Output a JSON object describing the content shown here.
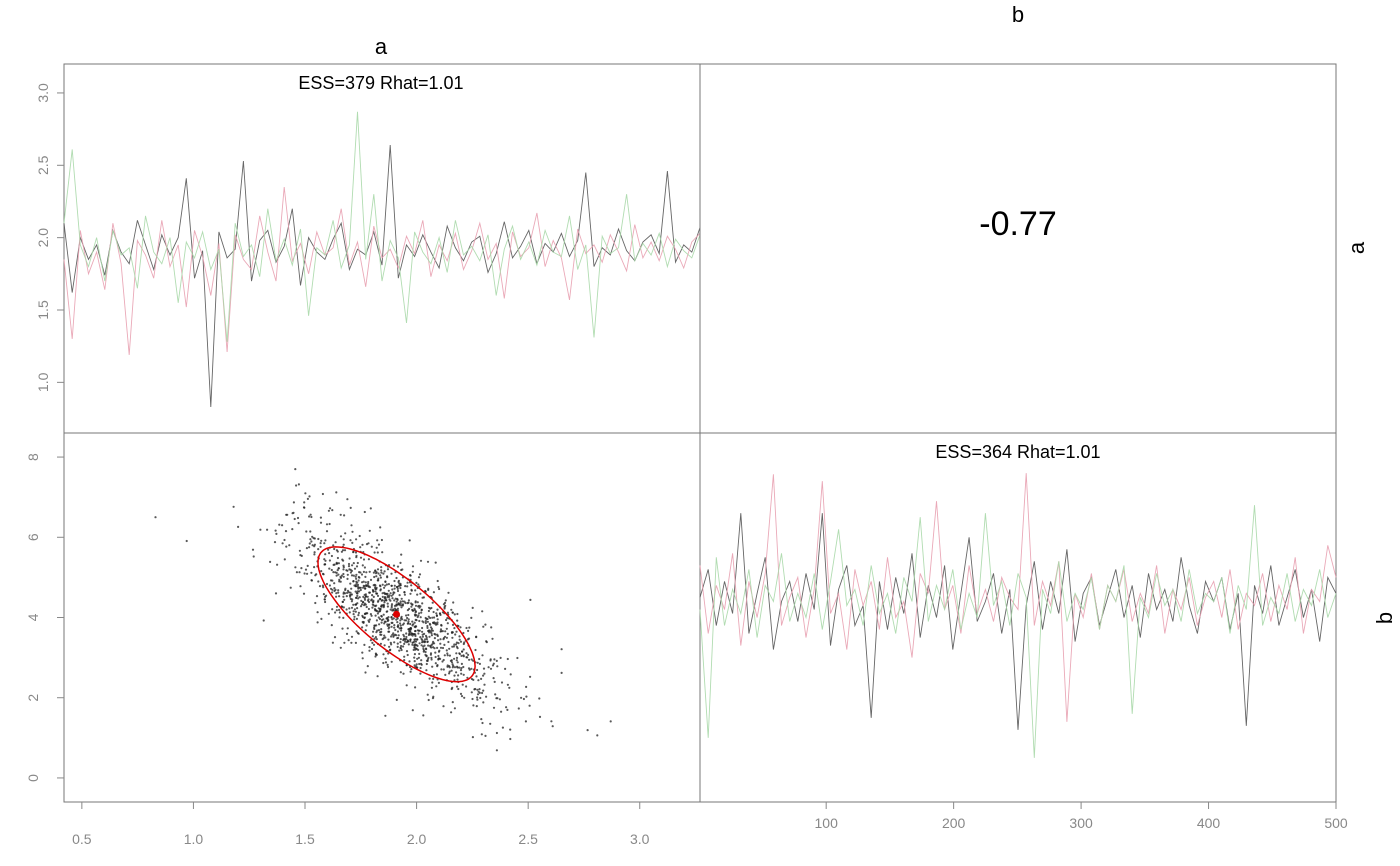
{
  "chart_data": [
    {
      "panel": "trace-a",
      "type": "line",
      "title": "ESS=379 Rhat=1.01",
      "column_label": "a",
      "row_label": "a",
      "xlim": [
        1,
        500
      ],
      "ylim": [
        0.65,
        3.2
      ],
      "yticks": [
        1.0,
        1.5,
        2.0,
        2.5,
        3.0
      ],
      "ytick_labels": [
        "1.0",
        "1.5",
        "2.0",
        "2.5",
        "3.0"
      ],
      "series": [
        {
          "color": "#555555",
          "values": [
            2.1,
            1.62,
            2.0,
            1.85,
            1.95,
            1.74,
            2.05,
            1.9,
            1.82,
            2.12,
            1.95,
            1.78,
            2.02,
            1.88,
            2.0,
            2.41,
            1.72,
            1.91,
            0.83,
            2.04,
            1.86,
            1.92,
            2.53,
            1.7,
            1.98,
            2.05,
            1.83,
            1.94,
            2.2,
            1.67,
            2.0,
            1.9,
            1.85,
            1.99,
            2.1,
            1.78,
            1.92,
            1.88,
            2.04,
            1.81,
            2.64,
            1.72,
            1.95,
            1.87,
            2.02,
            1.9,
            1.79,
            2.08,
            1.93,
            1.84,
            1.97,
            2.01,
            1.76,
            1.89,
            2.11,
            1.86,
            1.94,
            2.05,
            1.82,
            1.96,
            1.9,
            2.03,
            1.87,
            1.98,
            2.45,
            1.8,
            1.93,
            1.88,
            2.06,
            1.91,
            1.84,
            1.97,
            2.02,
            1.89,
            2.46,
            1.83,
            1.95,
            1.9,
            2.07
          ]
        },
        {
          "color": "#e8a0b0",
          "values": [
            1.85,
            1.3,
            2.05,
            1.75,
            1.9,
            1.64,
            2.1,
            1.82,
            1.19,
            1.98,
            1.88,
            1.72,
            2.12,
            1.8,
            1.95,
            1.52,
            2.05,
            1.87,
            1.6,
            1.96,
            1.21,
            2.02,
            1.85,
            1.78,
            2.15,
            1.9,
            1.7,
            2.35,
            1.84,
            1.96,
            1.75,
            2.04,
            1.88,
            1.93,
            2.2,
            1.81,
            1.97,
            1.66,
            2.08,
            1.86,
            1.92,
            1.79,
            2.01,
            1.89,
            2.12,
            1.73,
            1.95,
            1.84,
            2.03,
            1.78,
            1.91,
            2.1,
            1.85,
            1.96,
            1.58,
            2.04,
            1.87,
            1.93,
            2.17,
            1.8,
            1.98,
            1.86,
            1.57,
            2.06,
            1.89,
            1.95,
            1.83,
            2.02,
            1.9,
            1.77,
            2.09,
            1.86,
            1.97,
            1.84,
            2.01,
            1.92,
            1.79,
            1.97,
            2.03
          ]
        },
        {
          "color": "#a8d8a8",
          "values": [
            2.1,
            2.61,
            1.95,
            1.8,
            2.0,
            1.7,
            2.05,
            1.88,
            1.93,
            1.65,
            2.15,
            1.9,
            1.82,
            2.0,
            1.55,
            1.97,
            1.86,
            2.04,
            1.78,
            1.92,
            1.28,
            2.1,
            1.87,
            1.95,
            1.73,
            2.2,
            1.84,
            1.99,
            1.81,
            2.06,
            1.46,
            1.93,
            1.88,
            2.12,
            1.79,
            1.95,
            2.87,
            1.85,
            2.3,
            1.7,
            1.98,
            1.86,
            1.41,
            2.04,
            1.9,
            1.82,
            2.0,
            1.76,
            2.12,
            1.88,
            1.94,
            1.84,
            2.02,
            1.6,
            1.92,
            2.08,
            1.85,
            1.97,
            1.81,
            2.05,
            1.9,
            1.87,
            2.15,
            1.78,
            1.95,
            1.31,
            2.01,
            1.89,
            1.93,
            2.3,
            1.84,
            1.96,
            1.88,
            2.03,
            1.8,
            1.99,
            1.91,
            1.86,
            2.02
          ]
        }
      ]
    },
    {
      "panel": "correlation",
      "type": "text",
      "value": "-0.77",
      "column_label": "b"
    },
    {
      "panel": "scatter-ab",
      "type": "scatter",
      "xlim": [
        0.42,
        3.27
      ],
      "ylim": [
        -0.6,
        8.6
      ],
      "xticks": [
        0.5,
        1.0,
        1.5,
        2.0,
        2.5,
        3.0
      ],
      "xtick_labels": [
        "0.5",
        "1.0",
        "1.5",
        "2.0",
        "2.5",
        "3.0"
      ],
      "yticks": [
        0,
        2,
        4,
        6,
        8
      ],
      "ytick_labels": [
        "0",
        "2",
        "4",
        "6",
        "8"
      ],
      "mean": [
        1.91,
        4.08
      ],
      "ellipse_color": "#dd0000",
      "ellipse": {
        "center": [
          1.91,
          4.08
        ],
        "sd_x": 0.22,
        "sd_y": 1.05,
        "rho": -0.77,
        "scale": 1.6
      },
      "point_color": "#222222",
      "points": [
        [
          0.83,
          6.5
        ],
        [
          1.18,
          6.76
        ],
        [
          1.2,
          6.26
        ],
        [
          1.27,
          5.52
        ],
        [
          1.3,
          6.19
        ],
        [
          1.33,
          6.19
        ],
        [
          1.37,
          4.6
        ],
        [
          1.42,
          6.56
        ],
        [
          1.45,
          6.87
        ],
        [
          1.46,
          7.29
        ],
        [
          1.52,
          7.02
        ],
        [
          1.58,
          7.08
        ],
        [
          1.64,
          7.12
        ],
        [
          1.66,
          6.56
        ],
        [
          1.62,
          3.81
        ],
        [
          1.69,
          6.95
        ],
        [
          1.61,
          6.33
        ],
        [
          1.48,
          4.78
        ],
        [
          1.55,
          5.08
        ],
        [
          2.03,
          1.56
        ],
        [
          2.1,
          2.37
        ],
        [
          2.27,
          1.79
        ],
        [
          2.33,
          1.35
        ],
        [
          2.36,
          1.12
        ],
        [
          2.36,
          0.69
        ],
        [
          2.42,
          0.97
        ],
        [
          2.49,
          1.41
        ],
        [
          2.55,
          1.98
        ],
        [
          2.61,
          1.29
        ],
        [
          2.65,
          2.62
        ],
        [
          2.65,
          3.21
        ],
        [
          2.81,
          1.06
        ],
        [
          2.87,
          1.41
        ],
        [
          2.34,
          3.47
        ],
        [
          2.51,
          4.44
        ],
        [
          2.05,
          3.4
        ],
        [
          1.96,
          4.36
        ]
      ],
      "n_cloud_points": 1300,
      "cloud_seed": 7
    },
    {
      "panel": "trace-b",
      "type": "line",
      "title": "ESS=364 Rhat=1.01",
      "row_label": "b",
      "xlim": [
        1,
        500
      ],
      "ylim": [
        -0.6,
        8.6
      ],
      "xticks": [
        100,
        200,
        300,
        400,
        500
      ],
      "xtick_labels": [
        "100",
        "200",
        "300",
        "400",
        "500"
      ],
      "series": [
        {
          "color": "#555555",
          "values": [
            4.5,
            5.2,
            3.8,
            4.9,
            4.1,
            6.6,
            3.6,
            4.6,
            5.5,
            3.2,
            4.4,
            4.9,
            3.9,
            5.1,
            4.2,
            6.6,
            3.3,
            4.7,
            5.3,
            3.8,
            4.3,
            1.5,
            4.9,
            3.7,
            5.0,
            4.1,
            5.6,
            3.5,
            4.8,
            4.0,
            5.3,
            3.2,
            4.6,
            6.0,
            3.9,
            4.4,
            5.1,
            3.6,
            4.7,
            1.2,
            4.3,
            5.4,
            3.7,
            4.9,
            4.1,
            5.7,
            3.4,
            4.6,
            5.0,
            3.8,
            4.5,
            5.2,
            4.0,
            4.8,
            3.5,
            5.1,
            4.2,
            4.7,
            3.9,
            5.5,
            4.3,
            3.6,
            4.9,
            4.4,
            5.0,
            3.7,
            4.6,
            1.3,
            4.8,
            4.1,
            5.3,
            3.8,
            4.5,
            5.2,
            4.0,
            4.7,
            3.4,
            5.0,
            4.6
          ]
        },
        {
          "color": "#e8a0b0",
          "values": [
            5.3,
            3.6,
            4.8,
            4.2,
            5.6,
            3.3,
            4.9,
            4.0,
            5.1,
            7.57,
            3.8,
            4.5,
            5.0,
            3.5,
            4.7,
            7.4,
            4.1,
            4.6,
            3.2,
            5.2,
            4.3,
            4.9,
            3.7,
            5.5,
            4.0,
            4.4,
            3.0,
            5.1,
            4.6,
            6.9,
            4.2,
            4.8,
            3.6,
            5.3,
            4.1,
            4.7,
            3.9,
            5.0,
            4.5,
            4.2,
            7.6,
            3.8,
            4.9,
            4.3,
            5.4,
            1.4,
            4.6,
            4.0,
            5.1,
            3.7,
            4.8,
            4.4,
            5.2,
            3.9,
            4.6,
            4.1,
            5.3,
            3.6,
            4.7,
            4.2,
            5.0,
            3.8,
            4.5,
            4.9,
            4.0,
            5.2,
            3.7,
            4.6,
            4.3,
            5.1,
            3.9,
            4.8,
            4.2,
            5.5,
            3.6,
            4.7,
            4.4,
            5.8,
            5.0
          ]
        },
        {
          "color": "#a8d8a8",
          "values": [
            4.2,
            1.0,
            5.5,
            3.8,
            4.7,
            4.1,
            5.2,
            3.5,
            4.8,
            4.4,
            5.6,
            3.9,
            4.6,
            4.0,
            5.1,
            3.7,
            4.9,
            6.2,
            4.3,
            4.7,
            3.8,
            5.3,
            4.1,
            4.6,
            3.6,
            5.0,
            4.4,
            6.5,
            3.9,
            4.8,
            4.2,
            5.2,
            3.7,
            4.6,
            4.0,
            6.6,
            4.3,
            4.9,
            3.8,
            5.1,
            4.5,
            0.5,
            4.7,
            4.1,
            5.4,
            3.9,
            4.6,
            4.2,
            5.0,
            3.7,
            4.8,
            4.4,
            5.3,
            1.6,
            4.5,
            4.0,
            5.1,
            4.3,
            4.7,
            3.9,
            5.2,
            4.1,
            4.6,
            4.4,
            5.0,
            3.6,
            4.8,
            4.2,
            6.8,
            3.8,
            4.5,
            4.1,
            5.1,
            3.9,
            4.7,
            4.3,
            5.2,
            4.0,
            4.6
          ]
        }
      ]
    }
  ]
}
